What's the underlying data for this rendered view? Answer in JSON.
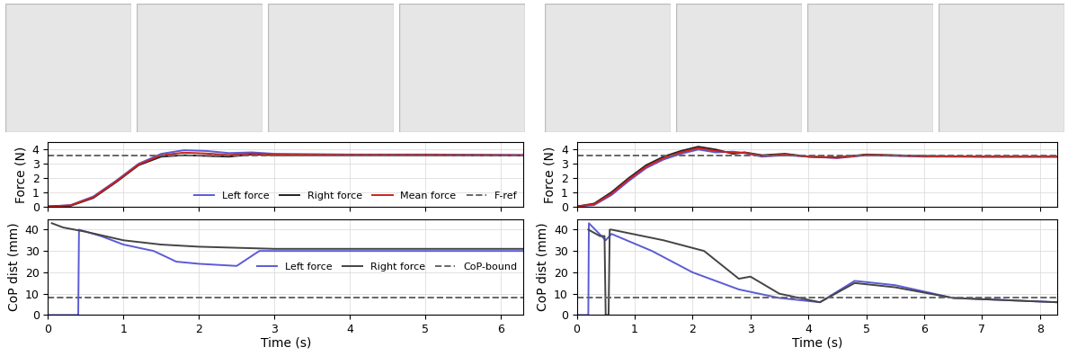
{
  "chart_data": [
    {
      "type": "line",
      "ylabel": "Force (N)",
      "xlim": [
        0,
        6.3
      ],
      "xticks": [
        0,
        1,
        2,
        3,
        4,
        5,
        6
      ],
      "ylim": [
        0,
        4.5
      ],
      "yticks": [
        0,
        1,
        2,
        3,
        4
      ],
      "grid": true,
      "legend": "lower right",
      "tick_labels": "y",
      "series": [
        {
          "name": "Left force",
          "color": "#5b5bd6",
          "line_style": "solid",
          "x": [
            0,
            0.3,
            0.6,
            0.9,
            1.2,
            1.5,
            1.8,
            2.1,
            2.4,
            2.7,
            3.0,
            4.0,
            5.0,
            6.3
          ],
          "values": [
            0,
            0.1,
            0.7,
            1.8,
            3.0,
            3.7,
            3.95,
            3.9,
            3.75,
            3.8,
            3.7,
            3.65,
            3.65,
            3.62
          ]
        },
        {
          "name": "Right force",
          "color": "#222222",
          "line_style": "solid",
          "x": [
            0,
            0.3,
            0.6,
            0.9,
            1.2,
            1.5,
            1.8,
            2.1,
            2.4,
            2.7,
            3.0,
            4.0,
            5.0,
            6.3
          ],
          "values": [
            0,
            0.05,
            0.6,
            1.7,
            2.9,
            3.5,
            3.6,
            3.55,
            3.5,
            3.65,
            3.6,
            3.6,
            3.6,
            3.58
          ]
        },
        {
          "name": "Mean force",
          "color": "#cc2222",
          "line_style": "solid",
          "x": [
            0,
            0.3,
            0.6,
            0.9,
            1.2,
            1.5,
            1.8,
            2.1,
            2.4,
            2.7,
            3.0,
            4.0,
            5.0,
            6.3
          ],
          "values": [
            0,
            0.08,
            0.65,
            1.75,
            2.95,
            3.6,
            3.78,
            3.72,
            3.62,
            3.72,
            3.65,
            3.62,
            3.62,
            3.6
          ]
        },
        {
          "name": "F-ref",
          "color": "#666666",
          "line_style": "dashed",
          "x": [
            0,
            6.3
          ],
          "values": [
            3.55,
            3.55
          ]
        }
      ]
    },
    {
      "type": "line",
      "ylabel": "CoP dist (mm)",
      "xlabel": "Time (s)",
      "xlim": [
        0,
        6.3
      ],
      "xticks": [
        0,
        1,
        2,
        3,
        4,
        5,
        6
      ],
      "ylim": [
        0,
        45
      ],
      "yticks": [
        0,
        10,
        20,
        30,
        40
      ],
      "grid": true,
      "legend": "center right",
      "series": [
        {
          "name": "Left force",
          "color": "#5b5bd6",
          "line_style": "solid",
          "x": [
            0,
            0.4,
            0.41,
            0.7,
            1.0,
            1.4,
            1.7,
            2.0,
            2.5,
            2.8,
            3.5,
            5.0,
            6.3
          ],
          "values": [
            0,
            0,
            40,
            37,
            33,
            30,
            25,
            24,
            23,
            30,
            30,
            30,
            30
          ]
        },
        {
          "name": "Right force",
          "color": "#444444",
          "line_style": "solid",
          "x": [
            0.05,
            0.2,
            0.5,
            1.0,
            1.5,
            2.0,
            3.0,
            4.0,
            5.0,
            6.3
          ],
          "values": [
            43,
            41,
            39,
            35,
            33,
            32,
            31,
            31,
            31,
            31
          ]
        },
        {
          "name": "CoP-bound",
          "color": "#666666",
          "line_style": "dashed",
          "x": [
            0,
            6.3
          ],
          "values": [
            8,
            8
          ]
        }
      ]
    },
    {
      "type": "line",
      "ylabel": "Force (N)",
      "xlim": [
        0,
        8.3
      ],
      "xticks": [
        0,
        1,
        2,
        3,
        4,
        5,
        6,
        7,
        8
      ],
      "ylim": [
        0,
        4.5
      ],
      "yticks": [
        0,
        1,
        2,
        3,
        4
      ],
      "grid": true,
      "tick_labels": "y",
      "series": [
        {
          "color": "#5b5bd6",
          "line_style": "solid",
          "x": [
            0,
            0.3,
            0.6,
            0.9,
            1.2,
            1.5,
            1.8,
            2.1,
            2.4,
            2.7,
            2.9,
            3.2,
            3.6,
            4.0,
            4.5,
            5.0,
            5.5,
            6.0,
            7.0,
            8.3
          ],
          "values": [
            0,
            0.1,
            0.8,
            1.8,
            2.7,
            3.3,
            3.7,
            4.0,
            3.8,
            3.85,
            3.75,
            3.5,
            3.6,
            3.5,
            3.4,
            3.6,
            3.55,
            3.5,
            3.5,
            3.5
          ]
        },
        {
          "color": "#222222",
          "line_style": "solid",
          "x": [
            0,
            0.3,
            0.6,
            0.9,
            1.2,
            1.5,
            1.8,
            2.1,
            2.4,
            2.7,
            2.9,
            3.2,
            3.6,
            4.0,
            4.5,
            5.0,
            5.5,
            6.0,
            7.0,
            8.3
          ],
          "values": [
            0,
            0.2,
            1.0,
            2.0,
            2.9,
            3.5,
            3.9,
            4.2,
            4.0,
            3.7,
            3.8,
            3.6,
            3.7,
            3.5,
            3.45,
            3.65,
            3.6,
            3.55,
            3.5,
            3.5
          ]
        },
        {
          "color": "#cc2222",
          "line_style": "solid",
          "x": [
            0,
            0.3,
            0.6,
            0.9,
            1.2,
            1.5,
            1.8,
            2.1,
            2.4,
            2.7,
            2.9,
            3.2,
            3.6,
            4.0,
            4.5,
            5.0,
            5.5,
            6.0,
            7.0,
            8.3
          ],
          "values": [
            0,
            0.15,
            0.9,
            1.9,
            2.8,
            3.4,
            3.8,
            4.1,
            3.9,
            3.78,
            3.78,
            3.55,
            3.65,
            3.5,
            3.42,
            3.62,
            3.58,
            3.52,
            3.5,
            3.5
          ]
        },
        {
          "color": "#666666",
          "line_style": "dashed",
          "x": [
            0,
            8.3
          ],
          "values": [
            3.55,
            3.55
          ]
        }
      ]
    },
    {
      "type": "line",
      "ylabel": "CoP dist (mm)",
      "xlabel": "Time (s)",
      "xlim": [
        0,
        8.3
      ],
      "xticks": [
        0,
        1,
        2,
        3,
        4,
        5,
        6,
        7,
        8
      ],
      "ylim": [
        0,
        45
      ],
      "yticks": [
        0,
        10,
        20,
        30,
        40
      ],
      "grid": true,
      "series": [
        {
          "color": "#5b5bd6",
          "line_style": "solid",
          "x": [
            0,
            0.2,
            0.21,
            0.5,
            0.6,
            1.3,
            2.0,
            2.8,
            3.5,
            4.2,
            4.8,
            5.5,
            6.5,
            8.3
          ],
          "values": [
            0,
            0,
            43,
            35,
            38,
            30,
            20,
            12,
            8,
            6,
            16,
            14,
            8,
            6
          ]
        },
        {
          "color": "#444444",
          "line_style": "solid",
          "x": [
            0.2,
            0.4,
            0.48,
            0.5,
            0.55,
            0.57,
            0.6,
            1.5,
            2.2,
            2.8,
            3.0,
            3.5,
            4.2,
            4.8,
            5.5,
            6.5,
            8.3
          ],
          "values": [
            40,
            37,
            37,
            0,
            0,
            40,
            40,
            35,
            30,
            17,
            18,
            10,
            6,
            15,
            13,
            8,
            6
          ]
        },
        {
          "color": "#666666",
          "line_style": "dashed",
          "x": [
            0,
            8.3
          ],
          "values": [
            8,
            8
          ]
        }
      ]
    }
  ]
}
